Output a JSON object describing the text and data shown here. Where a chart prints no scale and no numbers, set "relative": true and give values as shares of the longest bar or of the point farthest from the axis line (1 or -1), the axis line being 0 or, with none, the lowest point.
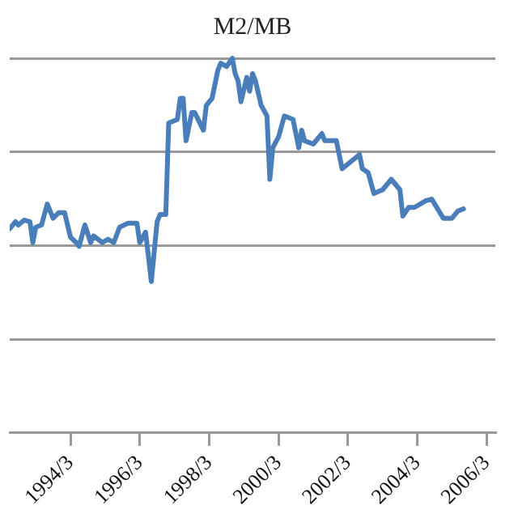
{
  "chart_data": {
    "type": "line",
    "title": "M2/MB",
    "relative": true,
    "grid": "y",
    "legend": false,
    "marker": "none",
    "line_style": "solid",
    "xlim": [
      "1992-06",
      "2006-06"
    ],
    "xticks": [
      {
        "value": "1994-03",
        "label": "1994/3"
      },
      {
        "value": "1996-03",
        "label": "1996/3"
      },
      {
        "value": "1998-03",
        "label": "1998/3"
      },
      {
        "value": "2000-03",
        "label": "2000/3"
      },
      {
        "value": "2002-03",
        "label": "2002/3"
      },
      {
        "value": "2004-03",
        "label": "2004/3"
      },
      {
        "value": "2006-03",
        "label": "2006/3"
      }
    ],
    "series": [
      {
        "color": "#4a7ebb",
        "x": [
          "1992-06",
          "1992-08",
          "1992-09",
          "1992-11",
          "1993-01",
          "1993-02",
          "1993-03",
          "1993-05",
          "1993-07",
          "1993-09",
          "1993-11",
          "1994-01",
          "1994-03",
          "1994-05",
          "1994-06",
          "1994-08",
          "1994-10",
          "1994-11",
          "1995-02",
          "1995-04",
          "1995-06",
          "1995-08",
          "1995-11",
          "1996-02",
          "1996-03",
          "1996-05",
          "1996-07",
          "1996-09",
          "1996-10",
          "1996-12",
          "1997-01",
          "1997-04",
          "1997-05",
          "1997-06",
          "1997-07",
          "1997-09",
          "1997-10",
          "1998-01",
          "1998-02",
          "1998-04",
          "1998-06",
          "1998-07",
          "1998-09",
          "1998-11",
          "1998-12",
          "1999-01",
          "1999-02",
          "1999-04",
          "1999-05",
          "1999-06",
          "1999-07",
          "1999-09",
          "1999-11",
          "1999-12",
          "2000-01",
          "2000-03",
          "2000-05",
          "2000-08",
          "2000-10",
          "2000-11",
          "2000-12",
          "2001-03",
          "2001-06",
          "2001-07",
          "2001-11",
          "2002-01",
          "2002-04",
          "2002-07",
          "2002-08",
          "2002-10",
          "2002-12",
          "2003-03",
          "2003-06",
          "2003-09",
          "2003-10",
          "2003-12",
          "2004-02",
          "2004-06",
          "2004-08",
          "2004-12",
          "2005-03",
          "2005-05",
          "2005-07"
        ],
        "values": [
          0.545,
          0.564,
          0.555,
          0.568,
          0.564,
          0.508,
          0.549,
          0.555,
          0.611,
          0.573,
          0.588,
          0.588,
          0.523,
          0.508,
          0.498,
          0.555,
          0.508,
          0.526,
          0.508,
          0.517,
          0.508,
          0.549,
          0.56,
          0.56,
          0.508,
          0.536,
          0.404,
          0.564,
          0.583,
          0.583,
          0.827,
          0.837,
          0.893,
          0.893,
          0.78,
          0.855,
          0.855,
          0.808,
          0.874,
          0.893,
          0.968,
          0.987,
          0.978,
          1.0,
          0.959,
          0.94,
          0.884,
          0.949,
          0.912,
          0.959,
          0.94,
          0.874,
          0.846,
          0.677,
          0.761,
          0.79,
          0.846,
          0.837,
          0.761,
          0.808,
          0.78,
          0.771,
          0.799,
          0.78,
          0.78,
          0.705,
          0.724,
          0.743,
          0.705,
          0.695,
          0.639,
          0.649,
          0.677,
          0.649,
          0.579,
          0.602,
          0.602,
          0.62,
          0.624,
          0.573,
          0.573,
          0.592,
          0.598
        ]
      }
    ]
  }
}
